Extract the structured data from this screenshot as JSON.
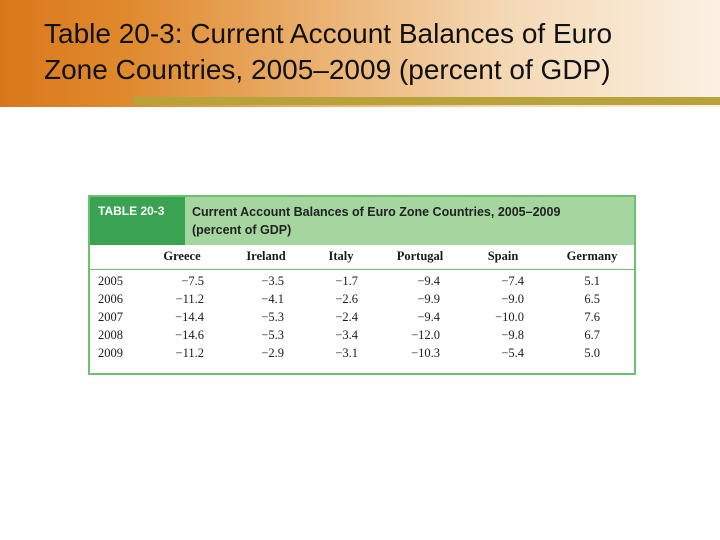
{
  "slide": {
    "title_lines": [
      "Table 20-3: Current Account Balances of Euro",
      "Zone Countries, 2005–2009 (percent of GDP)"
    ]
  },
  "table": {
    "label": "TABLE 20-3",
    "caption_lines": [
      "Current Account Balances of Euro Zone Countries, 2005–2009",
      "(percent of GDP)"
    ],
    "columns": [
      "Greece",
      "Ireland",
      "Italy",
      "Portugal",
      "Spain",
      "Germany"
    ],
    "rows": [
      {
        "year": "2005",
        "values": [
          "−7.5",
          "−3.5",
          "−1.7",
          "−9.4",
          "−7.4",
          "5.1"
        ]
      },
      {
        "year": "2006",
        "values": [
          "−11.2",
          "−4.1",
          "−2.6",
          "−9.9",
          "−9.0",
          "6.5"
        ]
      },
      {
        "year": "2007",
        "values": [
          "−14.4",
          "−5.3",
          "−2.4",
          "−9.4",
          "−10.0",
          "7.6"
        ]
      },
      {
        "year": "2008",
        "values": [
          "−14.6",
          "−5.3",
          "−3.4",
          "−12.0",
          "−9.8",
          "6.7"
        ]
      },
      {
        "year": "2009",
        "values": [
          "−11.2",
          "−2.9",
          "−3.1",
          "−10.3",
          "−5.4",
          "5.0"
        ]
      }
    ]
  },
  "colors": {
    "title_gradient_start": "#d9781a",
    "rule": "#b8a33a",
    "table_label_bg": "#3aa352",
    "table_caption_bg": "#a6d6a0",
    "table_border": "#6fbf73"
  }
}
